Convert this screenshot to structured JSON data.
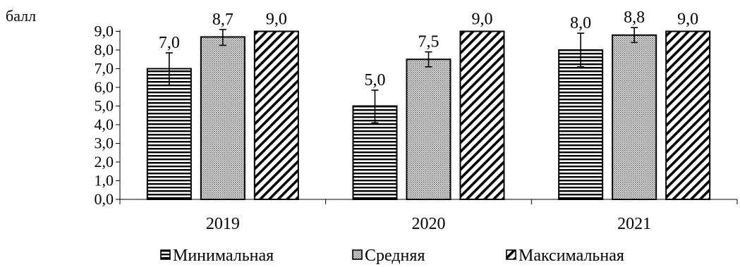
{
  "chart_data": {
    "type": "bar",
    "ylabel": "балл",
    "categories": [
      "2019",
      "2020",
      "2021"
    ],
    "ylim": [
      0,
      9
    ],
    "yticks": [
      "0,0",
      "1,0",
      "2,0",
      "3,0",
      "4,0",
      "5,0",
      "6,0",
      "7,0",
      "8,0",
      "9,0"
    ],
    "series": [
      {
        "name": "Минимальная",
        "values": [
          7.0,
          5.0,
          8.0
        ],
        "labels": [
          "7,0",
          "5,0",
          "8,0"
        ],
        "err_low": [
          6.1,
          4.1,
          7.1
        ],
        "err_high": [
          7.85,
          5.85,
          8.9
        ],
        "pattern": "horizontal-stripes"
      },
      {
        "name": "Средняя",
        "values": [
          8.7,
          7.5,
          8.8
        ],
        "labels": [
          "8,7",
          "7,5",
          "8,8"
        ],
        "err_low": [
          8.25,
          7.1,
          8.4
        ],
        "err_high": [
          9.1,
          7.9,
          9.2
        ],
        "pattern": "dots"
      },
      {
        "name": "Максимальная",
        "values": [
          9.0,
          9.0,
          9.0
        ],
        "labels": [
          "9,0",
          "9,0",
          "9,0"
        ],
        "pattern": "diagonal-stripes"
      }
    ],
    "legend_position": "bottom",
    "grid": false
  }
}
